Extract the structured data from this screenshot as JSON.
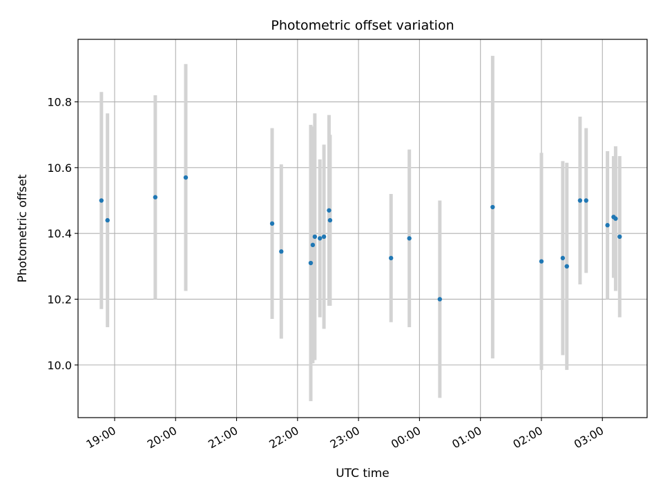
{
  "chart_data": {
    "type": "scatter",
    "title": "Photometric offset variation",
    "xlabel": "UTC time",
    "ylabel": "Photometric offset",
    "x_axis": {
      "kind": "time",
      "range": [
        "18:24",
        "03:44"
      ],
      "ticks": [
        "19:00",
        "20:00",
        "21:00",
        "22:00",
        "23:00",
        "00:00",
        "01:00",
        "02:00",
        "03:00"
      ]
    },
    "y_axis": {
      "range": [
        9.84,
        10.99
      ],
      "ticks": [
        10.0,
        10.2,
        10.4,
        10.6,
        10.8
      ],
      "tick_labels": [
        "10.0",
        "10.2",
        "10.4",
        "10.6",
        "10.8"
      ]
    },
    "grid": true,
    "colors": {
      "points": "#1f77b4",
      "error_bars": "#d3d3d3"
    },
    "series": [
      {
        "points": [
          {
            "t": "18:47",
            "y": 10.5,
            "err": 0.33
          },
          {
            "t": "18:53",
            "y": 10.44,
            "err": 0.325
          },
          {
            "t": "19:40",
            "y": 10.51,
            "err": 0.31
          },
          {
            "t": "20:10",
            "y": 10.57,
            "err": 0.345
          },
          {
            "t": "21:35",
            "y": 10.43,
            "err": 0.29
          },
          {
            "t": "21:44",
            "y": 10.345,
            "err": 0.265
          },
          {
            "t": "22:13",
            "y": 10.31,
            "err": 0.42
          },
          {
            "t": "22:15",
            "y": 10.365,
            "err": 0.36
          },
          {
            "t": "22:17",
            "y": 10.39,
            "err": 0.375
          },
          {
            "t": "22:22",
            "y": 10.385,
            "err": 0.24
          },
          {
            "t": "22:26",
            "y": 10.39,
            "err": 0.28
          },
          {
            "t": "22:31",
            "y": 10.47,
            "err": 0.29
          },
          {
            "t": "22:32",
            "y": 10.44,
            "err": 0.26
          },
          {
            "t": "23:32",
            "y": 10.325,
            "err": 0.195
          },
          {
            "t": "23:50",
            "y": 10.385,
            "err": 0.27
          },
          {
            "t": "00:20",
            "y": 10.2,
            "err": 0.3
          },
          {
            "t": "01:12",
            "y": 10.48,
            "err": 0.46
          },
          {
            "t": "02:00",
            "y": 10.315,
            "err": 0.33
          },
          {
            "t": "02:21",
            "y": 10.325,
            "err": 0.295
          },
          {
            "t": "02:25",
            "y": 10.3,
            "err": 0.315
          },
          {
            "t": "02:38",
            "y": 10.5,
            "err": 0.255
          },
          {
            "t": "02:44",
            "y": 10.5,
            "err": 0.22
          },
          {
            "t": "03:05",
            "y": 10.425,
            "err": 0.225
          },
          {
            "t": "03:11",
            "y": 10.45,
            "err": 0.185
          },
          {
            "t": "03:13",
            "y": 10.445,
            "err": 0.22
          },
          {
            "t": "03:17",
            "y": 10.39,
            "err": 0.245
          }
        ]
      }
    ]
  }
}
